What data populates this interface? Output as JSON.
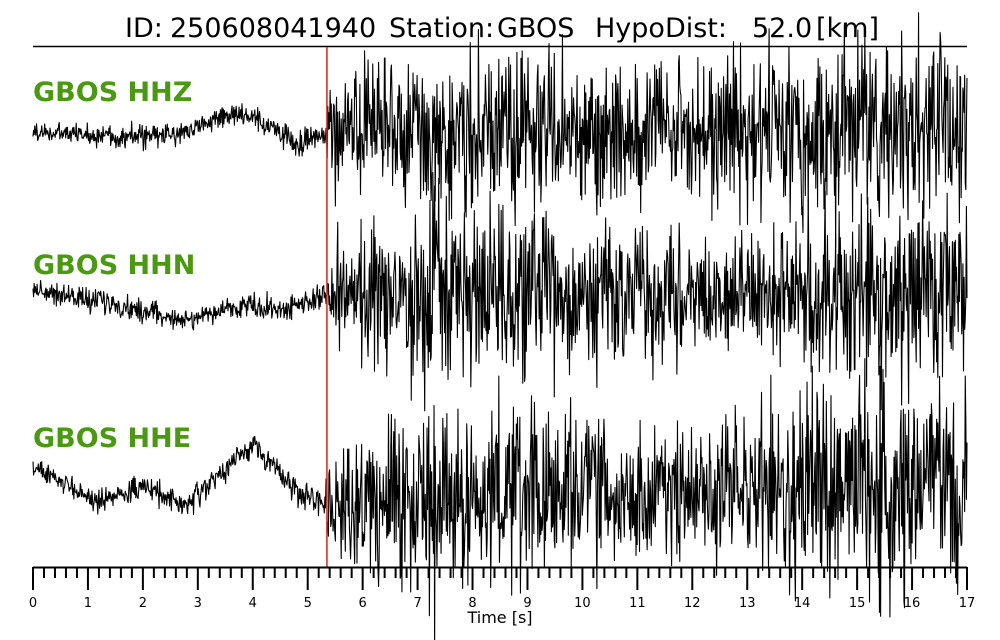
{
  "title": {
    "id_label": "ID:",
    "id_value": "250608041940",
    "station_label": "Station:",
    "station_value": "GBOS",
    "hypodist_label": "HypoDist:",
    "hypodist_value": "52.0",
    "hypodist_unit": "[km]"
  },
  "colors": {
    "trace": "#000000",
    "label": "#4a9a0f",
    "pick": "#e0221b",
    "axis": "#000000"
  },
  "chart_data": {
    "type": "line",
    "xlabel": "Time [s]",
    "xlim": [
      0,
      17
    ],
    "major_ticks": [
      0,
      1,
      2,
      3,
      4,
      5,
      6,
      7,
      8,
      9,
      10,
      11,
      12,
      13,
      14,
      15,
      16,
      17
    ],
    "tick_labels": [
      "0",
      "1",
      "2",
      "3",
      "4",
      "5",
      "6",
      "7",
      "8",
      "9",
      "10",
      "11",
      "12",
      "13",
      "14",
      "15",
      "16",
      "17"
    ],
    "minor_tick_step": 0.2,
    "pick_time": 5.35,
    "traces": [
      {
        "name": "GBOS HHZ",
        "envelope": [
          [
            0,
            0.05
          ],
          [
            0.5,
            0.05
          ],
          [
            1,
            0.06
          ],
          [
            2,
            0.07
          ],
          [
            3,
            0.06
          ],
          [
            4,
            0.06
          ],
          [
            4.5,
            0.07
          ],
          [
            5.3,
            0.07
          ],
          [
            5.5,
            0.32
          ],
          [
            7,
            0.42
          ],
          [
            8,
            0.4
          ],
          [
            9,
            0.45
          ],
          [
            10,
            0.4
          ],
          [
            11,
            0.34
          ],
          [
            12,
            0.38
          ],
          [
            13,
            0.46
          ],
          [
            14,
            0.44
          ],
          [
            15,
            0.48
          ],
          [
            16,
            0.5
          ],
          [
            17,
            0.52
          ]
        ],
        "trend": [
          [
            0,
            0
          ],
          [
            1.8,
            -0.03
          ],
          [
            2.5,
            -0.02
          ],
          [
            3.7,
            0.12
          ],
          [
            4.4,
            0.02
          ],
          [
            4.8,
            -0.08
          ],
          [
            5.3,
            0
          ],
          [
            17,
            0
          ]
        ]
      },
      {
        "name": "GBOS HHN",
        "envelope": [
          [
            0,
            0.05
          ],
          [
            1,
            0.07
          ],
          [
            2,
            0.06
          ],
          [
            3,
            0.05
          ],
          [
            4,
            0.07
          ],
          [
            5.3,
            0.07
          ],
          [
            5.5,
            0.3
          ],
          [
            6.5,
            0.42
          ],
          [
            7.3,
            0.58
          ],
          [
            8,
            0.42
          ],
          [
            9,
            0.45
          ],
          [
            10,
            0.42
          ],
          [
            11,
            0.36
          ],
          [
            12,
            0.3
          ],
          [
            13,
            0.36
          ],
          [
            14,
            0.4
          ],
          [
            15,
            0.46
          ],
          [
            16,
            0.54
          ],
          [
            17,
            0.52
          ]
        ],
        "trend": [
          [
            0,
            0.05
          ],
          [
            1.5,
            -0.05
          ],
          [
            2.8,
            -0.15
          ],
          [
            3.8,
            -0.05
          ],
          [
            4.5,
            -0.08
          ],
          [
            5.3,
            0
          ],
          [
            17,
            0
          ]
        ]
      },
      {
        "name": "GBOS HHE",
        "envelope": [
          [
            0,
            0.05
          ],
          [
            1,
            0.06
          ],
          [
            2,
            0.06
          ],
          [
            3,
            0.07
          ],
          [
            4,
            0.07
          ],
          [
            5.3,
            0.07
          ],
          [
            5.5,
            0.3
          ],
          [
            6.5,
            0.45
          ],
          [
            7.3,
            0.62
          ],
          [
            8,
            0.45
          ],
          [
            9,
            0.5
          ],
          [
            10,
            0.42
          ],
          [
            11,
            0.38
          ],
          [
            12,
            0.34
          ],
          [
            13,
            0.44
          ],
          [
            14,
            0.58
          ],
          [
            15,
            0.62
          ],
          [
            16,
            0.58
          ],
          [
            17,
            0.55
          ]
        ],
        "trend": [
          [
            0,
            0.1
          ],
          [
            1.2,
            -0.12
          ],
          [
            2,
            -0.02
          ],
          [
            2.8,
            -0.15
          ],
          [
            4,
            0.25
          ],
          [
            4.8,
            -0.05
          ],
          [
            5.3,
            -0.12
          ],
          [
            17,
            0
          ]
        ]
      }
    ]
  }
}
